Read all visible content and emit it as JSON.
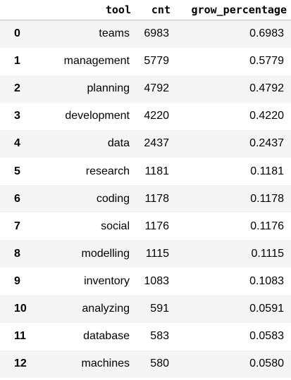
{
  "table": {
    "columns": [
      "",
      "tool",
      "cnt",
      "grow_percentage"
    ],
    "rows": [
      {
        "index": "0",
        "tool": "teams",
        "cnt": "6983",
        "grow_percentage": "0.6983"
      },
      {
        "index": "1",
        "tool": "management",
        "cnt": "5779",
        "grow_percentage": "0.5779"
      },
      {
        "index": "2",
        "tool": "planning",
        "cnt": "4792",
        "grow_percentage": "0.4792"
      },
      {
        "index": "3",
        "tool": "development",
        "cnt": "4220",
        "grow_percentage": "0.4220"
      },
      {
        "index": "4",
        "tool": "data",
        "cnt": "2437",
        "grow_percentage": "0.2437"
      },
      {
        "index": "5",
        "tool": "research",
        "cnt": "1181",
        "grow_percentage": "0.1181"
      },
      {
        "index": "6",
        "tool": "coding",
        "cnt": "1178",
        "grow_percentage": "0.1178"
      },
      {
        "index": "7",
        "tool": "social",
        "cnt": "1176",
        "grow_percentage": "0.1176"
      },
      {
        "index": "8",
        "tool": "modelling",
        "cnt": "1115",
        "grow_percentage": "0.1115"
      },
      {
        "index": "9",
        "tool": "inventory",
        "cnt": "1083",
        "grow_percentage": "0.1083"
      },
      {
        "index": "10",
        "tool": "analyzing",
        "cnt": "591",
        "grow_percentage": "0.0591"
      },
      {
        "index": "11",
        "tool": "database",
        "cnt": "583",
        "grow_percentage": "0.0583"
      },
      {
        "index": "12",
        "tool": "machines",
        "cnt": "580",
        "grow_percentage": "0.0580"
      }
    ]
  },
  "colors": {
    "stripe": "#f5f5f5",
    "background": "#ffffff",
    "header_rule": "#bdbdbd",
    "text": "#000000"
  }
}
